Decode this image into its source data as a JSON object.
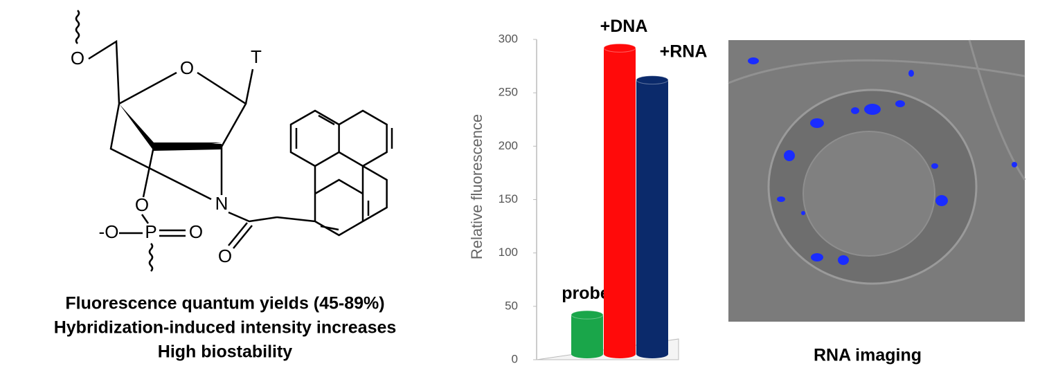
{
  "structure": {
    "atoms": [
      "O",
      "O",
      "T",
      "O",
      "N",
      "-O",
      "P",
      "O",
      "O"
    ]
  },
  "captions": [
    "Fluorescence quantum yields (45-89%)",
    "Hybridization-induced intensity increases",
    "High biostability"
  ],
  "chart_data": {
    "type": "bar",
    "y_label": "Relative fluorescence",
    "categories": [
      "probe",
      "+DNA",
      "+RNA"
    ],
    "values": [
      42,
      292,
      262
    ],
    "colors": [
      "#1aa64a",
      "#ff0a0a",
      "#0b2a6b"
    ],
    "ylim": [
      0,
      300
    ],
    "yticks": [
      0,
      50,
      100,
      150,
      200,
      250,
      300
    ]
  },
  "image": {
    "caption": "RNA imaging"
  }
}
